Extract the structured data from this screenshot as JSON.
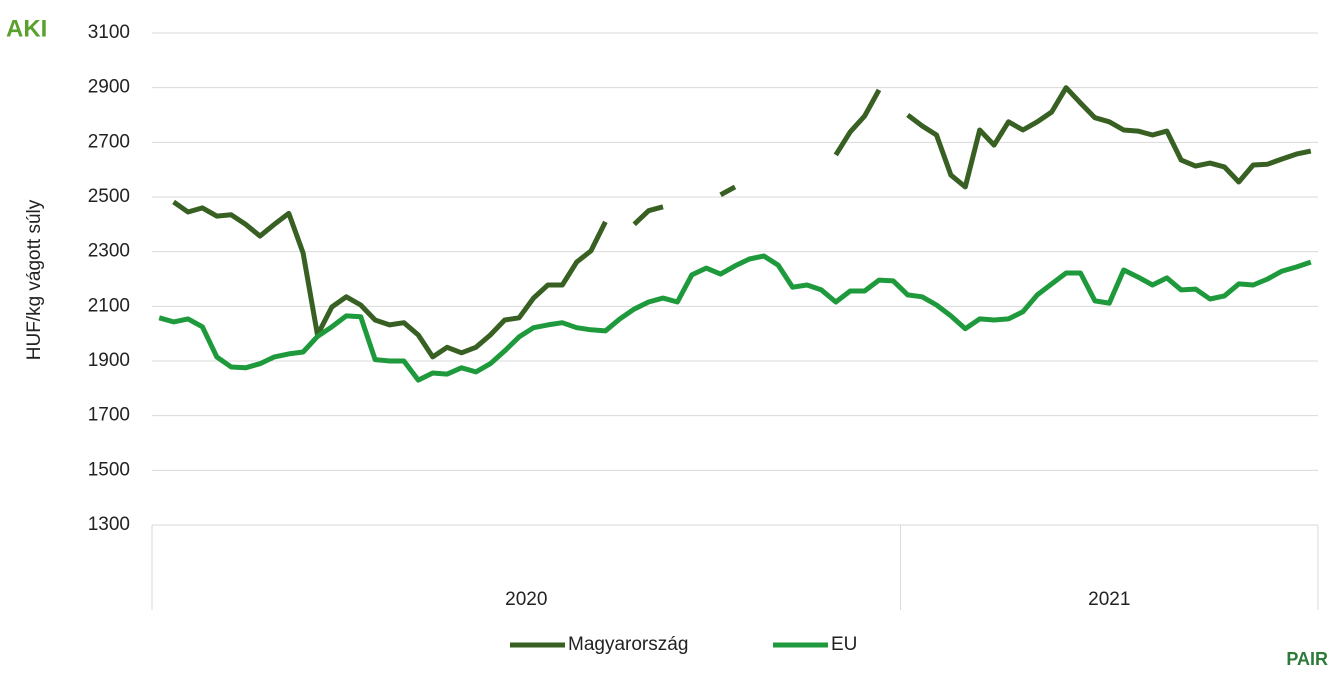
{
  "chart_data": {
    "type": "line",
    "y_label": "HUF/kg vágott súly",
    "logo_left": "AKI",
    "logo_right": "PAIR",
    "categories": [
      null,
      null,
      null,
      null,
      null,
      null,
      null,
      null,
      null,
      null,
      null,
      null,
      null,
      null,
      null,
      null,
      null,
      null,
      null,
      null,
      null,
      null,
      null,
      null,
      null,
      null,
      null,
      null,
      null,
      null,
      null,
      null,
      null,
      null,
      null,
      null,
      null,
      null,
      null,
      null,
      null,
      null,
      null,
      null,
      null,
      null,
      null,
      null,
      null,
      null,
      null,
      null,
      null,
      null,
      null,
      null,
      null,
      null,
      null,
      null,
      null,
      null,
      null,
      null,
      null,
      null,
      null,
      null,
      null,
      null,
      null,
      null,
      null,
      null,
      null,
      null,
      null,
      null,
      null,
      null,
      null
    ],
    "category_groups": [
      {
        "label": "2020",
        "size": 52
      },
      {
        "label": "2021",
        "size": 29
      }
    ],
    "series": [
      {
        "name": "Magyarország",
        "color": "#376022",
        "values": [
          null,
          2482,
          2445,
          2460,
          2430,
          2435,
          2400,
          2357,
          2400,
          2440,
          2295,
          1995,
          2098,
          2135,
          2105,
          2050,
          2032,
          2040,
          1995,
          1915,
          1950,
          1930,
          1950,
          1995,
          2050,
          2058,
          2130,
          2178,
          2178,
          2262,
          2303,
          2409,
          null,
          2400,
          2450,
          2464,
          null,
          null,
          null,
          2508,
          2537,
          null,
          null,
          null,
          null,
          null,
          null,
          2654,
          2738,
          2796,
          2892,
          null,
          2800,
          2760,
          2727,
          2580,
          2537,
          2745,
          2690,
          2775,
          2745,
          2775,
          2811,
          2900,
          2844,
          2790,
          2775,
          2745,
          2741,
          2727,
          2741,
          2635,
          2613,
          2624,
          2610,
          2555,
          2617,
          2620,
          2639,
          2657,
          2668
        ]
      },
      {
        "name": "EU",
        "color": "#1e9a3c",
        "values": [
          2058,
          2043,
          2054,
          2025,
          1915,
          1878,
          1875,
          1890,
          1915,
          1926,
          1933,
          1990,
          2025,
          2065,
          2062,
          1905,
          1900,
          1900,
          1830,
          1856,
          1852,
          1875,
          1860,
          1890,
          1937,
          1988,
          2022,
          2032,
          2040,
          2022,
          2014,
          2010,
          2054,
          2090,
          2116,
          2130,
          2116,
          2215,
          2240,
          2218,
          2248,
          2273,
          2284,
          2251,
          2170,
          2178,
          2160,
          2116,
          2156,
          2156,
          2196,
          2193,
          2142,
          2135,
          2105,
          2065,
          2018,
          2054,
          2050,
          2054,
          2080,
          2142,
          2182,
          2222,
          2222,
          2120,
          2112,
          2233,
          2207,
          2178,
          2204,
          2160,
          2163,
          2127,
          2138,
          2182,
          2178,
          2200,
          2229,
          2244,
          2262
        ]
      }
    ],
    "ylim": [
      1300,
      3100
    ],
    "yticks": [
      1300,
      1500,
      1700,
      1900,
      2100,
      2300,
      2500,
      2700,
      2900,
      3100
    ],
    "grid": true
  }
}
